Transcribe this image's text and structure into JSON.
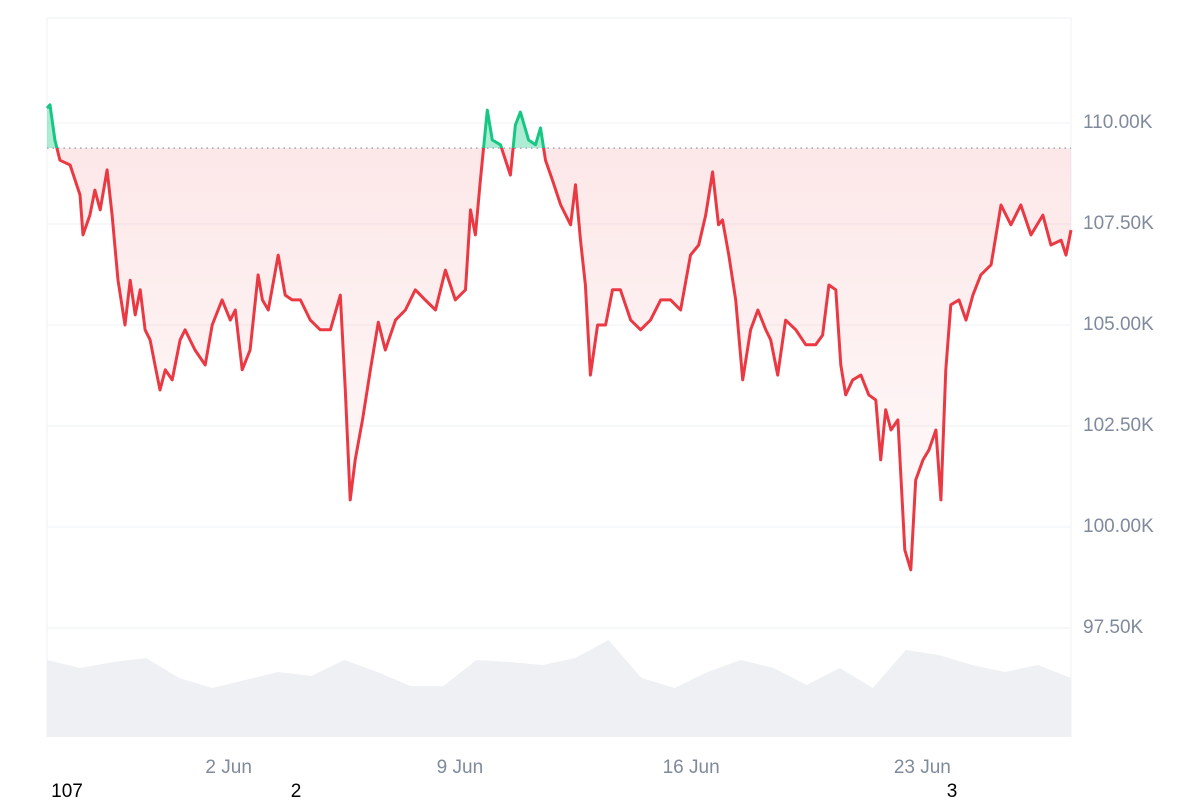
{
  "chart_data": {
    "type": "line",
    "x": [
      -3.5,
      -3.41,
      -3.26,
      -3.11,
      -2.8,
      -2.5,
      -2.41,
      -2.2,
      -2.05,
      -1.89,
      -1.68,
      -1.53,
      -1.35,
      -1.14,
      -0.98,
      -0.83,
      -0.68,
      -0.53,
      -0.38,
      -0.23,
      -0.08,
      0.08,
      0.29,
      0.53,
      0.68,
      0.83,
      0.98,
      1.29,
      1.5,
      1.8,
      2.05,
      2.2,
      2.41,
      2.65,
      2.89,
      3.02,
      3.2,
      3.5,
      3.71,
      3.92,
      4.17,
      4.47,
      4.77,
      5.08,
      5.38,
      5.53,
      5.68,
      5.83,
      6.05,
      6.29,
      6.53,
      6.74,
      7.05,
      7.35,
      7.65,
      7.95,
      8.26,
      8.56,
      8.86,
      9.17,
      9.32,
      9.47,
      9.62,
      9.83,
      9.98,
      10.23,
      10.53,
      10.68,
      10.83,
      11.08,
      11.29,
      11.44,
      11.59,
      11.8,
      12.05,
      12.35,
      12.5,
      12.65,
      12.8,
      12.95,
      13.17,
      13.41,
      13.62,
      13.86,
      14.17,
      14.47,
      14.77,
      15.08,
      15.38,
      15.68,
      15.98,
      16.23,
      16.44,
      16.65,
      16.83,
      16.95,
      17.14,
      17.35,
      17.56,
      17.8,
      18.02,
      18.26,
      18.41,
      18.62,
      18.86,
      19.17,
      19.47,
      19.77,
      19.98,
      20.17,
      20.38,
      20.53,
      20.68,
      20.89,
      21.14,
      21.38,
      21.59,
      21.74,
      21.89,
      22.05,
      22.26,
      22.47,
      22.65,
      22.8,
      23.02,
      23.2,
      23.41,
      23.56,
      23.71,
      23.86,
      24.11,
      24.32,
      24.53,
      24.77,
      25.08,
      25.38,
      25.68,
      25.98,
      26.29,
      26.65,
      26.89,
      27.2,
      27.35,
      27.5
    ],
    "values": [
      110370,
      110450,
      109580,
      109080,
      108960,
      108220,
      107230,
      107720,
      108340,
      107850,
      108840,
      107720,
      106110,
      105000,
      106110,
      105250,
      105870,
      104880,
      104630,
      104010,
      103390,
      103890,
      103640,
      104630,
      104880,
      104630,
      104380,
      104010,
      105000,
      105620,
      105120,
      105370,
      103890,
      104380,
      106240,
      105620,
      105370,
      106730,
      105740,
      105620,
      105620,
      105120,
      104880,
      104880,
      105740,
      103390,
      100670,
      101660,
      102650,
      103890,
      105070,
      104380,
      105120,
      105370,
      105870,
      105620,
      105370,
      106360,
      105620,
      105870,
      107850,
      107230,
      108590,
      110320,
      109580,
      109460,
      108710,
      109950,
      110270,
      109580,
      109460,
      109880,
      109080,
      108590,
      107970,
      107480,
      108470,
      107100,
      105990,
      103760,
      105000,
      105000,
      105870,
      105870,
      105120,
      104880,
      105120,
      105620,
      105620,
      105370,
      106730,
      106980,
      107720,
      108790,
      107480,
      107600,
      106730,
      105620,
      103640,
      104880,
      105370,
      104880,
      104630,
      103760,
      105120,
      104880,
      104510,
      104510,
      104750,
      105990,
      105870,
      104010,
      103270,
      103640,
      103760,
      103270,
      103140,
      101660,
      102900,
      102400,
      102650,
      99430,
      98940,
      101160,
      101660,
      101910,
      102400,
      100670,
      103890,
      105500,
      105620,
      105120,
      105740,
      106240,
      106490,
      107970,
      107480,
      107970,
      107230,
      107720,
      106980,
      107100,
      106730,
      107350
    ],
    "baseline": 109380,
    "colors": {
      "up": "#16c784",
      "down": "#ea3943"
    },
    "xlim": [
      -3.5,
      27.5
    ],
    "xticks": [
      {
        "value": 2,
        "label": "2 Jun"
      },
      {
        "value": 9,
        "label": "9 Jun"
      },
      {
        "value": 16,
        "label": "16 Jun"
      },
      {
        "value": 23,
        "label": "23 Jun"
      }
    ],
    "ylim": [
      94800,
      112600
    ],
    "yticks": [
      {
        "value": 97500,
        "label": "97.50K"
      },
      {
        "value": 100000,
        "label": "100.00K"
      },
      {
        "value": 102500,
        "label": "102.50K"
      },
      {
        "value": 105000,
        "label": "105.00K"
      },
      {
        "value": 107500,
        "label": "107.50K"
      },
      {
        "value": 110000,
        "label": "110.00K"
      }
    ],
    "grid": true,
    "volume": {
      "x": [
        -3.5,
        -2.5,
        -1.5,
        -0.5,
        0.5,
        1.5,
        2.5,
        3.5,
        4.5,
        5.5,
        6.5,
        7.5,
        8.5,
        9.5,
        10.5,
        11.5,
        12.5,
        13.5,
        14.5,
        15.5,
        16.5,
        17.5,
        18.5,
        19.5,
        20.5,
        21.5,
        22.5,
        23.5,
        24.5,
        25.5,
        26.5,
        27.5
      ],
      "values": [
        77,
        69,
        75,
        79,
        59,
        49,
        57,
        65,
        61,
        77,
        65,
        51,
        51,
        77,
        75,
        72,
        79,
        97,
        59,
        49,
        65,
        77,
        69,
        52,
        69,
        49,
        87,
        82,
        72,
        65,
        72,
        59
      ],
      "ylim": [
        0,
        120
      ],
      "color": "#eef0f3"
    },
    "footer_labels": [
      "107",
      "2",
      "3"
    ]
  }
}
